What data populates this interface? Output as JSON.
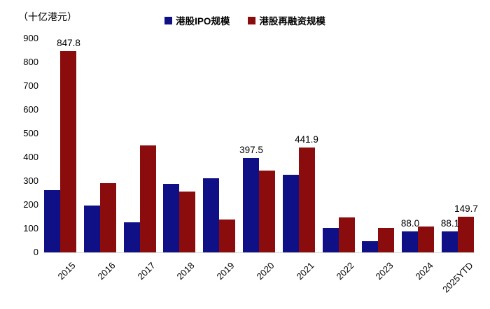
{
  "chart_data": {
    "type": "bar",
    "unit_label": "（十亿港元）",
    "categories": [
      "2015",
      "2016",
      "2017",
      "2018",
      "2019",
      "2020",
      "2021",
      "2022",
      "2023",
      "2024",
      "2025YTD"
    ],
    "series": [
      {
        "key": "ipo",
        "name": "港股IPO规模",
        "color": "#101086",
        "values": [
          262,
          196,
          127,
          287,
          312,
          397.5,
          327,
          104,
          47,
          88.0,
          88.1
        ]
      },
      {
        "key": "refinancing",
        "name": "港股再融资规模",
        "color": "#8B0C0C",
        "values": [
          847.8,
          291,
          450,
          255,
          139,
          345,
          441.9,
          146,
          104,
          110,
          149.7
        ]
      }
    ],
    "data_labels": [
      {
        "series": 1,
        "category": "2015",
        "text": "847.8"
      },
      {
        "series": 0,
        "category": "2020",
        "text": "397.5"
      },
      {
        "series": 1,
        "category": "2021",
        "text": "441.9"
      },
      {
        "series": 0,
        "category": "2024",
        "text": "88.0"
      },
      {
        "series": 0,
        "category": "2025YTD",
        "text": "88.1"
      },
      {
        "series": 1,
        "category": "2025YTD",
        "text": "149.7"
      }
    ],
    "ylim": [
      0,
      900
    ],
    "ytick_step": 100,
    "yticks": [
      "0",
      "100",
      "200",
      "300",
      "400",
      "500",
      "600",
      "700",
      "800",
      "900"
    ],
    "grid": false,
    "legend_position": "top-center",
    "axis_line_color": "#d9d9d9",
    "text_color": "#000000",
    "background_color": "#ffffff"
  }
}
